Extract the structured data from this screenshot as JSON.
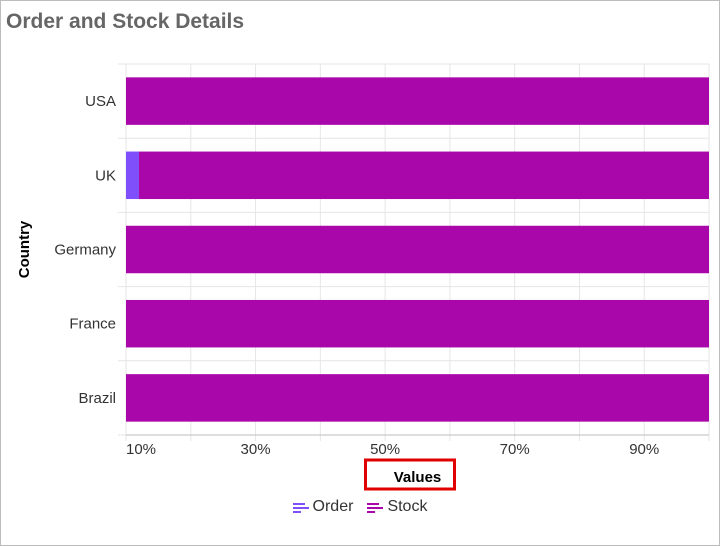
{
  "header": {
    "title": "Order and Stock Details"
  },
  "chart_data": {
    "type": "bar",
    "orientation": "horizontal",
    "stacked": "100%",
    "categories": [
      "USA",
      "UK",
      "Germany",
      "France",
      "Brazil"
    ],
    "series": [
      {
        "name": "Order",
        "color": "#7e4ffb",
        "values": [
          6,
          12,
          7,
          3,
          2.5
        ]
      },
      {
        "name": "Stock",
        "color": "#a907a9",
        "values": [
          94,
          88,
          93,
          97,
          97.5
        ]
      }
    ],
    "xlabel": "Values",
    "ylabel": "Country",
    "x_ticks": [
      "10%",
      "30%",
      "50%",
      "70%",
      "90%"
    ],
    "xlim": [
      10,
      100
    ],
    "grid": true,
    "legend_position": "bottom"
  },
  "legend": {
    "items": [
      {
        "label": "Order",
        "color": "#7e4ffb"
      },
      {
        "label": "Stock",
        "color": "#a907a9"
      }
    ]
  },
  "annotation": {
    "highlight_color": "#e00000"
  }
}
